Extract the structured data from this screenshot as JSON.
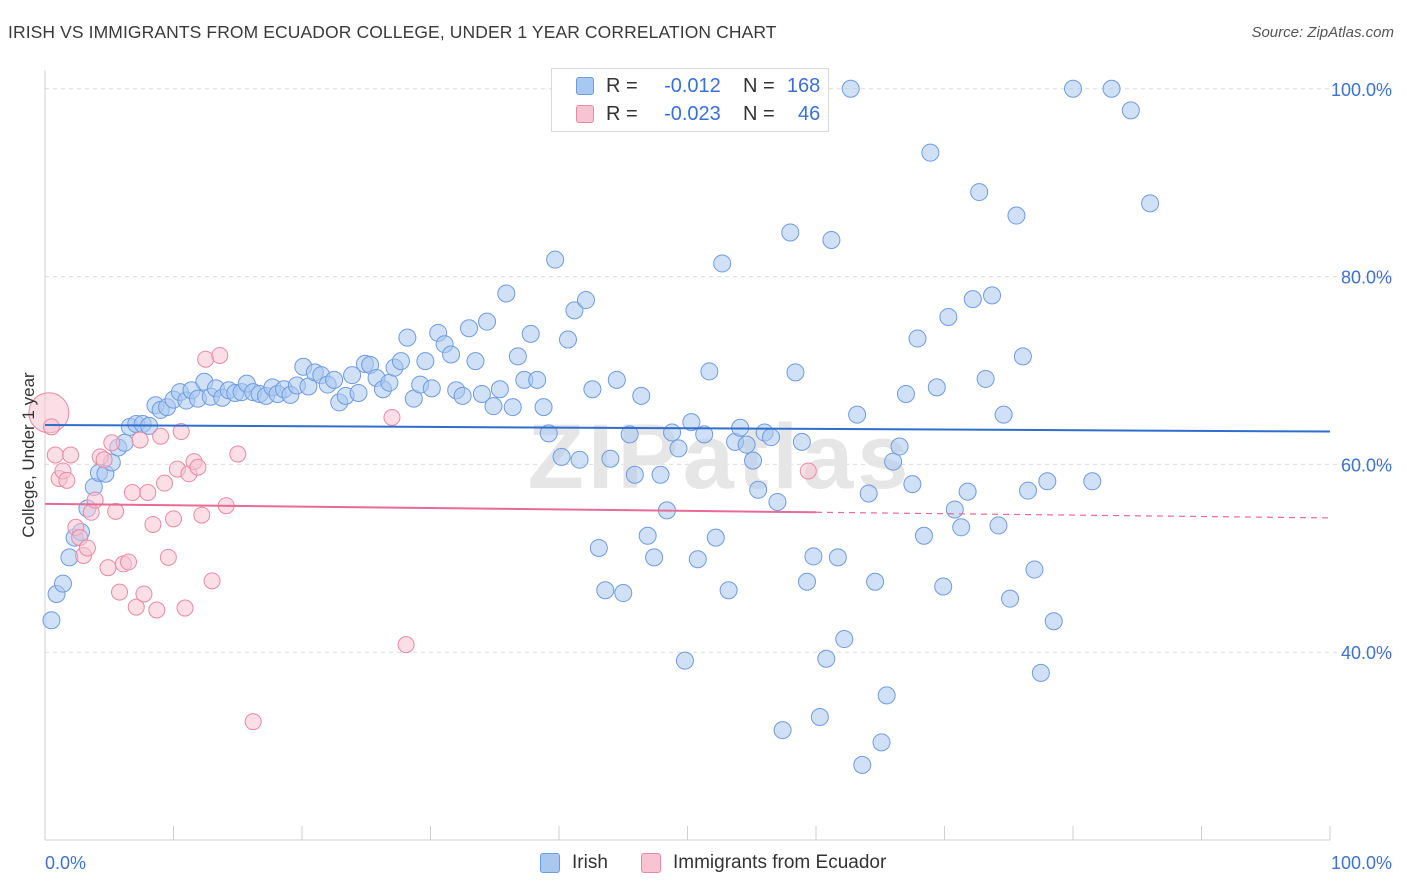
{
  "title": "IRISH VS IMMIGRANTS FROM ECUADOR COLLEGE, UNDER 1 YEAR CORRELATION CHART",
  "source": "Source: ZipAtlas.com",
  "watermark": "ZIPatlas",
  "legend": {
    "r_label": "R =",
    "n_label": "N =",
    "rows": [
      {
        "r": "-0.012",
        "n": "168",
        "color": "#a9c8f0",
        "border": "#6f9be0"
      },
      {
        "r": "-0.023",
        "n": "46",
        "color": "#f8c3d2",
        "border": "#e88aa6"
      }
    ]
  },
  "bottom_legend": [
    {
      "label": "Irish",
      "color": "#a9c8f0",
      "border": "#6f9be0"
    },
    {
      "label": "Immigrants from Ecuador",
      "color": "#f8c3d2",
      "border": "#e88aa6"
    }
  ],
  "chart_data": {
    "type": "scatter",
    "title": "IRISH VS IMMIGRANTS FROM ECUADOR COLLEGE, UNDER 1 YEAR CORRELATION CHART",
    "xlabel": "",
    "ylabel": "College, Under 1 year",
    "xlim": [
      0,
      100
    ],
    "ylim": [
      20,
      102
    ],
    "x_tick_labels": [
      "0.0%",
      "100.0%"
    ],
    "y_tick_labels": [
      {
        "value": 100,
        "label": "100.0%"
      },
      {
        "value": 80,
        "label": "80.0%"
      },
      {
        "value": 60,
        "label": "60.0%"
      },
      {
        "value": 40,
        "label": "40.0%"
      }
    ],
    "grid": true,
    "series": [
      {
        "name": "Irish",
        "color": "#a9c8f0",
        "stroke": "#6f9be0",
        "line_color": "#2e6fce",
        "trend": {
          "x": [
            0,
            100
          ],
          "y": [
            64.2,
            63.5
          ]
        },
        "points": [
          [
            0.5,
            43.4
          ],
          [
            0.9,
            46.2
          ],
          [
            1.4,
            47.3
          ],
          [
            1.9,
            50.1
          ],
          [
            2.3,
            52.2
          ],
          [
            2.8,
            52.8
          ],
          [
            3.3,
            55.3
          ],
          [
            3.8,
            57.6
          ],
          [
            4.2,
            59.1
          ],
          [
            4.7,
            59.0
          ],
          [
            5.2,
            60.2
          ],
          [
            5.7,
            61.8
          ],
          [
            6.2,
            62.3
          ],
          [
            6.6,
            64.0
          ],
          [
            7.1,
            64.3
          ],
          [
            7.6,
            64.3
          ],
          [
            8.1,
            64.1
          ],
          [
            8.6,
            66.3
          ],
          [
            9.0,
            65.8
          ],
          [
            9.5,
            66.1
          ],
          [
            10.0,
            66.9
          ],
          [
            10.5,
            67.7
          ],
          [
            11.0,
            66.8
          ],
          [
            11.4,
            67.9
          ],
          [
            11.9,
            67.0
          ],
          [
            12.4,
            68.8
          ],
          [
            12.9,
            67.2
          ],
          [
            13.3,
            68.1
          ],
          [
            13.8,
            67.1
          ],
          [
            14.3,
            67.9
          ],
          [
            14.8,
            67.6
          ],
          [
            15.3,
            67.7
          ],
          [
            15.7,
            68.6
          ],
          [
            16.2,
            67.7
          ],
          [
            16.7,
            67.5
          ],
          [
            17.2,
            67.3
          ],
          [
            17.7,
            68.2
          ],
          [
            18.1,
            67.5
          ],
          [
            18.6,
            68.0
          ],
          [
            19.1,
            67.4
          ],
          [
            19.6,
            68.4
          ],
          [
            20.1,
            70.4
          ],
          [
            20.5,
            68.3
          ],
          [
            21.0,
            69.8
          ],
          [
            21.5,
            69.5
          ],
          [
            22.0,
            68.5
          ],
          [
            22.5,
            69.0
          ],
          [
            22.9,
            66.6
          ],
          [
            23.4,
            67.3
          ],
          [
            23.9,
            69.5
          ],
          [
            24.4,
            67.6
          ],
          [
            24.9,
            70.7
          ],
          [
            25.3,
            70.6
          ],
          [
            25.8,
            69.2
          ],
          [
            26.3,
            68.0
          ],
          [
            26.8,
            68.7
          ],
          [
            27.2,
            70.3
          ],
          [
            27.7,
            71.0
          ],
          [
            28.2,
            73.5
          ],
          [
            28.7,
            67.0
          ],
          [
            29.2,
            68.5
          ],
          [
            29.6,
            71.0
          ],
          [
            30.1,
            68.1
          ],
          [
            30.6,
            74.0
          ],
          [
            31.1,
            72.8
          ],
          [
            31.6,
            71.7
          ],
          [
            32.0,
            67.9
          ],
          [
            32.5,
            67.3
          ],
          [
            33.0,
            74.5
          ],
          [
            33.5,
            71.0
          ],
          [
            34.0,
            67.5
          ],
          [
            34.4,
            75.2
          ],
          [
            34.9,
            66.2
          ],
          [
            35.4,
            68.0
          ],
          [
            35.9,
            78.2
          ],
          [
            36.4,
            66.1
          ],
          [
            36.8,
            71.5
          ],
          [
            37.3,
            69.0
          ],
          [
            37.8,
            73.9
          ],
          [
            38.3,
            69.0
          ],
          [
            38.8,
            66.1
          ],
          [
            39.2,
            63.3
          ],
          [
            39.7,
            81.8
          ],
          [
            40.2,
            60.8
          ],
          [
            40.7,
            73.3
          ],
          [
            41.2,
            76.4
          ],
          [
            41.6,
            60.5
          ],
          [
            42.1,
            77.5
          ],
          [
            42.6,
            68.0
          ],
          [
            43.1,
            51.1
          ],
          [
            43.6,
            46.6
          ],
          [
            44.0,
            60.6
          ],
          [
            44.5,
            69.0
          ],
          [
            45.0,
            46.3
          ],
          [
            45.5,
            63.2
          ],
          [
            45.9,
            58.9
          ],
          [
            46.4,
            67.3
          ],
          [
            46.9,
            52.4
          ],
          [
            47.4,
            50.1
          ],
          [
            47.9,
            58.9
          ],
          [
            48.4,
            55.1
          ],
          [
            48.8,
            63.4
          ],
          [
            49.3,
            61.7
          ],
          [
            49.8,
            39.1
          ],
          [
            50.3,
            64.5
          ],
          [
            50.8,
            49.9
          ],
          [
            51.3,
            63.2
          ],
          [
            51.7,
            69.9
          ],
          [
            52.2,
            52.2
          ],
          [
            52.7,
            81.4
          ],
          [
            53.2,
            46.6
          ],
          [
            53.7,
            62.4
          ],
          [
            54.1,
            63.9
          ],
          [
            54.6,
            62.1
          ],
          [
            55.1,
            60.4
          ],
          [
            55.5,
            57.3
          ],
          [
            56.0,
            63.4
          ],
          [
            56.5,
            62.9
          ],
          [
            57.0,
            56.0
          ],
          [
            57.4,
            31.7
          ],
          [
            58.0,
            84.7
          ],
          [
            58.4,
            69.8
          ],
          [
            58.9,
            62.4
          ],
          [
            59.3,
            47.5
          ],
          [
            59.8,
            50.2
          ],
          [
            60.3,
            33.1
          ],
          [
            60.8,
            39.3
          ],
          [
            61.2,
            83.9
          ],
          [
            61.7,
            50.1
          ],
          [
            62.2,
            41.4
          ],
          [
            62.7,
            100.0
          ],
          [
            63.2,
            65.3
          ],
          [
            63.6,
            28.0
          ],
          [
            64.1,
            56.9
          ],
          [
            64.6,
            47.5
          ],
          [
            65.1,
            30.4
          ],
          [
            65.5,
            35.4
          ],
          [
            66.0,
            60.3
          ],
          [
            66.5,
            61.9
          ],
          [
            67.0,
            67.5
          ],
          [
            67.5,
            57.9
          ],
          [
            67.9,
            73.4
          ],
          [
            68.4,
            52.4
          ],
          [
            68.9,
            93.2
          ],
          [
            69.4,
            68.2
          ],
          [
            69.9,
            47.0
          ],
          [
            70.3,
            75.7
          ],
          [
            70.8,
            55.2
          ],
          [
            71.3,
            53.3
          ],
          [
            71.8,
            57.1
          ],
          [
            72.2,
            77.6
          ],
          [
            72.7,
            89.0
          ],
          [
            73.2,
            69.1
          ],
          [
            73.7,
            78.0
          ],
          [
            74.2,
            53.5
          ],
          [
            74.6,
            65.3
          ],
          [
            75.1,
            45.7
          ],
          [
            75.6,
            86.5
          ],
          [
            76.1,
            71.5
          ],
          [
            76.5,
            57.2
          ],
          [
            77.0,
            48.8
          ],
          [
            77.5,
            37.8
          ],
          [
            78.0,
            58.2
          ],
          [
            78.5,
            43.3
          ],
          [
            80.0,
            100.0
          ],
          [
            81.5,
            58.2
          ],
          [
            83.0,
            100.0
          ],
          [
            84.5,
            97.7
          ],
          [
            86.0,
            87.8
          ]
        ]
      },
      {
        "name": "Immigrants from Ecuador",
        "color": "#f8c3d2",
        "stroke": "#e88aa6",
        "line_color": "#e76b93",
        "trend": {
          "x": [
            0,
            60
          ],
          "y": [
            55.8,
            54.9
          ]
        },
        "trend_dashed": {
          "x": [
            60,
            100
          ],
          "y": [
            54.9,
            54.3
          ]
        },
        "points": [
          [
            0.3,
            65.5
          ],
          [
            0.5,
            64.0
          ],
          [
            0.8,
            61.0
          ],
          [
            1.1,
            58.5
          ],
          [
            1.4,
            59.3
          ],
          [
            1.7,
            58.3
          ],
          [
            2.0,
            61.0
          ],
          [
            2.4,
            53.3
          ],
          [
            2.7,
            52.2
          ],
          [
            3.0,
            50.3
          ],
          [
            3.3,
            51.1
          ],
          [
            3.6,
            54.9
          ],
          [
            3.9,
            56.2
          ],
          [
            4.3,
            60.8
          ],
          [
            4.6,
            60.5
          ],
          [
            4.9,
            49.0
          ],
          [
            5.2,
            62.3
          ],
          [
            5.5,
            55.0
          ],
          [
            5.8,
            46.4
          ],
          [
            6.1,
            49.4
          ],
          [
            6.5,
            49.6
          ],
          [
            6.8,
            57.0
          ],
          [
            7.1,
            44.8
          ],
          [
            7.4,
            62.6
          ],
          [
            7.7,
            46.2
          ],
          [
            8.0,
            57.0
          ],
          [
            8.4,
            53.6
          ],
          [
            8.7,
            44.5
          ],
          [
            9.0,
            63.0
          ],
          [
            9.3,
            58.0
          ],
          [
            9.6,
            50.1
          ],
          [
            10.0,
            54.2
          ],
          [
            10.3,
            59.5
          ],
          [
            10.6,
            63.5
          ],
          [
            10.9,
            44.7
          ],
          [
            11.2,
            59.0
          ],
          [
            11.6,
            60.3
          ],
          [
            11.9,
            59.7
          ],
          [
            12.2,
            54.6
          ],
          [
            12.5,
            71.2
          ],
          [
            13.0,
            47.6
          ],
          [
            13.6,
            71.6
          ],
          [
            14.1,
            55.6
          ],
          [
            15.0,
            61.1
          ],
          [
            16.2,
            32.6
          ],
          [
            27.0,
            65.0
          ],
          [
            28.1,
            40.8
          ],
          [
            59.4,
            59.3
          ]
        ]
      }
    ]
  }
}
